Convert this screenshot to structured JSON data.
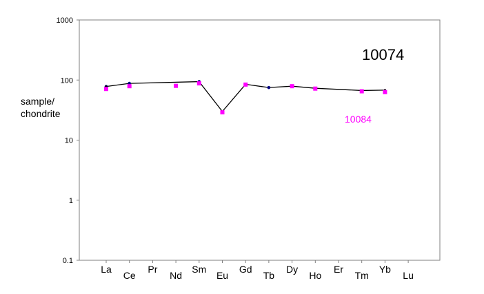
{
  "chart_data": {
    "type": "line",
    "categories": [
      "La",
      "Ce",
      "Pr",
      "Nd",
      "Sm",
      "Eu",
      "Gd",
      "Tb",
      "Dy",
      "Ho",
      "Er",
      "Tm",
      "Yb",
      "Lu"
    ],
    "series": [
      {
        "name": "10074",
        "color": "#000000",
        "points": [
          {
            "category": "La",
            "value": 78
          },
          {
            "category": "Ce",
            "value": 88
          },
          {
            "category": "Sm",
            "value": 94
          },
          {
            "category": "Eu",
            "value": 30
          },
          {
            "category": "Gd",
            "value": 85
          },
          {
            "category": "Tb",
            "value": 75
          },
          {
            "category": "Dy",
            "value": 79
          },
          {
            "category": "Ho",
            "value": 73
          },
          {
            "category": "Tm",
            "value": 67
          },
          {
            "category": "Yb",
            "value": 68
          }
        ],
        "marker_points": [
          {
            "category": "La",
            "value": 78
          },
          {
            "category": "Ce",
            "value": 88
          },
          {
            "category": "Sm",
            "value": 94
          },
          {
            "category": "Gd",
            "value": 85
          },
          {
            "category": "Tb",
            "value": 75
          }
        ],
        "line_ends": [
          {
            "category": "La",
            "value": 78
          },
          {
            "category": "Yb",
            "value": 68
          }
        ]
      },
      {
        "name": "10084",
        "color": "#ff00ff",
        "points": [
          {
            "category": "La",
            "value": 71
          },
          {
            "category": "Ce",
            "value": 79
          },
          {
            "category": "Nd",
            "value": 80
          },
          {
            "category": "Sm",
            "value": 88
          },
          {
            "category": "Eu",
            "value": 29
          },
          {
            "category": "Gd",
            "value": 84
          },
          {
            "category": "Dy",
            "value": 79
          },
          {
            "category": "Ho",
            "value": 72
          },
          {
            "category": "Tm",
            "value": 65
          },
          {
            "category": "Yb",
            "value": 63
          }
        ]
      }
    ],
    "yscale": "log",
    "ylim": [
      0.1,
      1000
    ],
    "yticks": [
      "0.1",
      "1",
      "10",
      "100",
      "1000"
    ],
    "ylabel": [
      "sample/",
      "chondrite"
    ],
    "xlabel": "",
    "title": "",
    "grid": false
  }
}
